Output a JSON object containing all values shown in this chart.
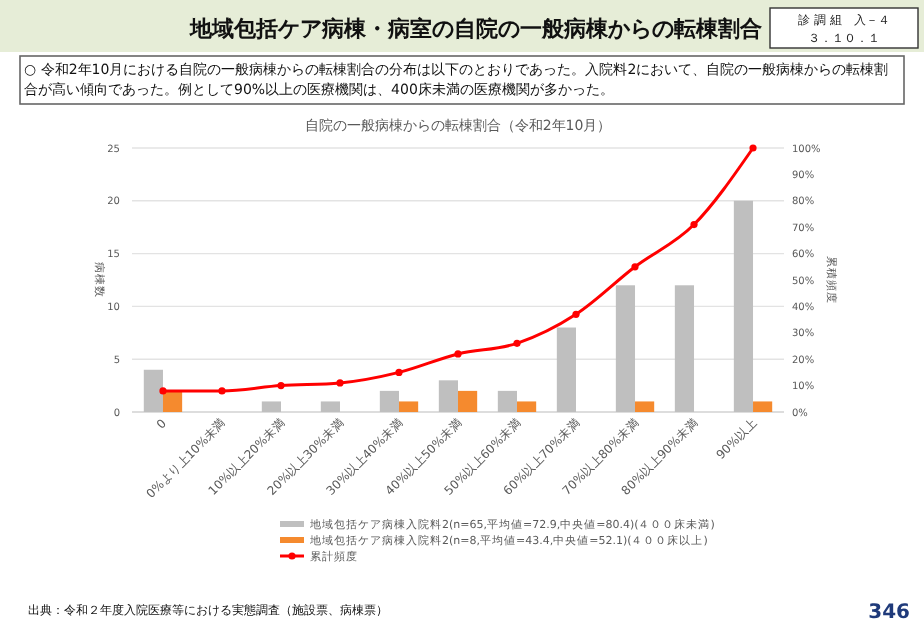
{
  "chart_data": {
    "type": "bar",
    "title": "地域包括ケア病棟・病室の自院の一般病棟からの転棟割合",
    "subtitle": "自院の一般病棟からの転棟割合（令和2年10月）",
    "annotations": [
      "診 調 組　入－４",
      "３．１０．１",
      "○ 令和2年10月における自院の一般病棟からの転棟割合の分布は以下のとおりであった。入院料2において、自院の一般病棟からの転棟割合が高い傾向であった。例として90%以上の医療機関は、400床未満の医療機関が多かった。",
      "出典：令和２年度入院医療等における実態調査（施設票、病棟票）",
      "346"
    ],
    "categories": [
      "0",
      "0%より上10%未満",
      "10%以上20%未満",
      "20%以上30%未満",
      "30%以上40%未満",
      "40%以上50%未満",
      "50%以上60%未満",
      "60%以上70%未満",
      "70%以上80%未満",
      "80%以上90%未満",
      "90%以上"
    ],
    "series": [
      {
        "name": "地域包括ケア病棟入院料2(n=65,平均値=72.9,中央値=80.4)(４００床未満)",
        "color": "#bfbfbf",
        "values": [
          4,
          0,
          1,
          1,
          2,
          3,
          2,
          8,
          12,
          12,
          20
        ]
      },
      {
        "name": "地域包括ケア病棟入院料2(n=8,平均値=43.4,中央値=52.1)(４００床以上)",
        "color": "#f58a2e",
        "values": [
          2,
          0,
          0,
          0,
          1,
          2,
          1,
          0,
          1,
          0,
          1
        ]
      },
      {
        "name": "累計頻度",
        "type": "line",
        "axis": "y2",
        "color": "#ff0000",
        "marker": "circle",
        "values": [
          8,
          8,
          10,
          11,
          15,
          22,
          26,
          37,
          55,
          71,
          100
        ]
      }
    ],
    "ylabel": "病棟数",
    "y2label": "累積頻度",
    "ylim": [
      0,
      25
    ],
    "yticks": [
      0,
      5,
      10,
      15,
      20,
      25
    ],
    "y2lim": [
      0,
      100
    ],
    "y2ticks": [
      {
        "value": 0,
        "label": "0%"
      },
      {
        "value": 10,
        "label": "10%"
      },
      {
        "value": 20,
        "label": "20%"
      },
      {
        "value": 30,
        "label": "30%"
      },
      {
        "value": 40,
        "label": "40%"
      },
      {
        "value": 50,
        "label": "50%"
      },
      {
        "value": 60,
        "label": "60%"
      },
      {
        "value": 70,
        "label": "70%"
      },
      {
        "value": 80,
        "label": "80%"
      },
      {
        "value": 90,
        "label": "90%"
      },
      {
        "value": 100,
        "label": "100%"
      }
    ],
    "grid": "y",
    "legend": "bottom"
  }
}
